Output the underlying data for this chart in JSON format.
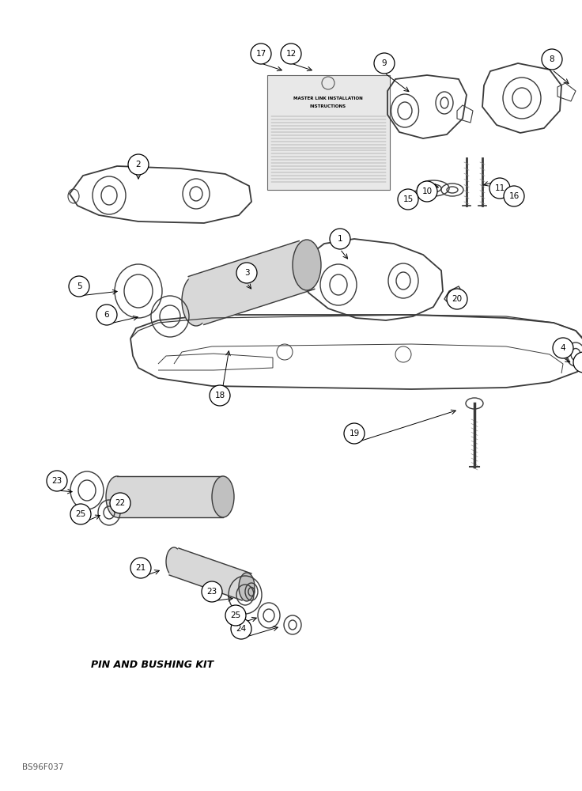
{
  "bg_color": "#ffffff",
  "fig_width": 7.36,
  "fig_height": 10.0,
  "dpi": 100,
  "bottom_label": "BS96F037",
  "pin_kit_label": "PIN AND BUSHING KIT",
  "instruction_title1": "MASTER LINK INSTALLATION",
  "instruction_title2": "INSTRUCTIONS",
  "gray": "#3a3a3a",
  "black": "#000000",
  "light_gray": "#cccccc",
  "card_fill": "#e0e0e0"
}
